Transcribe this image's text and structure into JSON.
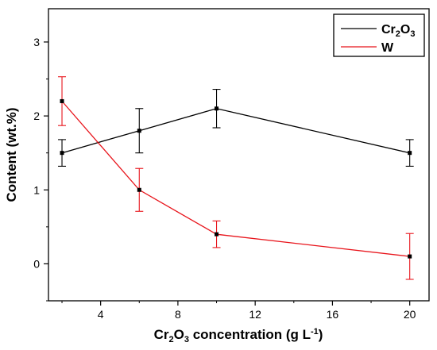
{
  "chart_data": {
    "type": "line",
    "xlabel": "Cr2O3 concentration (g L-1)",
    "xlabel_parts": {
      "pre": "Cr",
      "sub1": "2",
      "mid": "O",
      "sub2": "3",
      "post": " concentration (g L",
      "sup": "-1",
      "end": ")"
    },
    "ylabel": "Content (wt.%)",
    "xlim": [
      1.3,
      21
    ],
    "ylim": [
      -0.5,
      3.45
    ],
    "xticks": [
      4,
      8,
      12,
      16,
      20
    ],
    "yticks": [
      0,
      1,
      2,
      3
    ],
    "grid": false,
    "legend_position": "top-right",
    "series": [
      {
        "name": "Cr2O3",
        "name_parts": {
          "pre": "Cr",
          "sub1": "2",
          "mid": "O",
          "sub2": "3"
        },
        "color": "#000000",
        "x": [
          2,
          6,
          10,
          20
        ],
        "y": [
          1.5,
          1.8,
          2.1,
          1.5
        ],
        "err": [
          0.18,
          0.3,
          0.26,
          0.18
        ]
      },
      {
        "name": "W",
        "color": "#e8141b",
        "x": [
          2,
          6,
          10,
          20
        ],
        "y": [
          2.2,
          1.0,
          0.4,
          0.1
        ],
        "err": [
          0.33,
          0.29,
          0.18,
          0.31
        ]
      }
    ]
  }
}
